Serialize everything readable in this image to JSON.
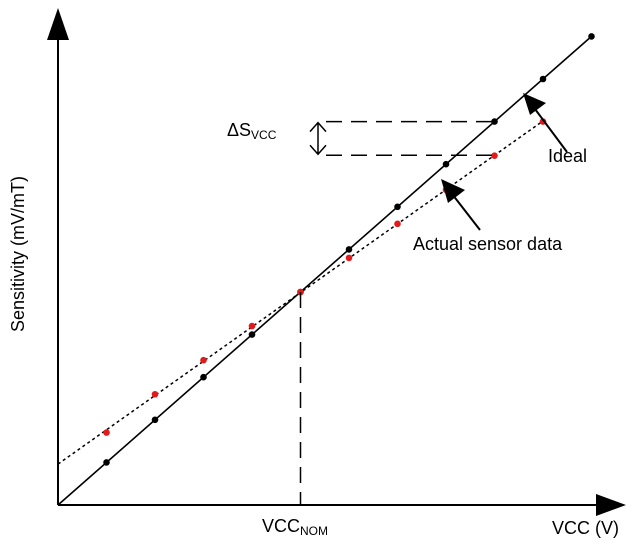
{
  "chart_data": {
    "type": "line",
    "xlabel": "VCC (V)",
    "ylabel": "Sensitivity (mV/mT)",
    "x_marker_label": {
      "base": "VCC",
      "sub": "NOM"
    },
    "delta_label": {
      "prefix": "ΔS",
      "sub": "VCC"
    },
    "annotations": {
      "ideal": "Ideal",
      "actual": "Actual sensor data"
    },
    "series": [
      {
        "name": "Ideal",
        "style": "solid",
        "color": "#000000",
        "points": [
          [
            0.5,
            0.5
          ],
          [
            1,
            1
          ],
          [
            1.5,
            1.5
          ],
          [
            2,
            2
          ],
          [
            2.5,
            2.5
          ],
          [
            3,
            3
          ],
          [
            3.5,
            3.5
          ],
          [
            4,
            4
          ],
          [
            4.5,
            4.5
          ],
          [
            5,
            5
          ]
        ]
      },
      {
        "name": "Actual sensor data",
        "style": "dotted",
        "color": "#e31a1c",
        "points": [
          [
            0.5,
            0.85
          ],
          [
            1,
            1.3
          ],
          [
            1.5,
            1.7
          ],
          [
            2,
            2.1
          ],
          [
            2.5,
            2.5
          ],
          [
            3,
            2.9
          ],
          [
            3.5,
            3.3
          ],
          [
            4,
            3.7
          ],
          [
            4.5,
            4.1
          ],
          [
            5,
            4.5
          ]
        ]
      }
    ],
    "ideal_line_extent": [
      0,
      5.5
    ],
    "actual_line_extent": [
      0,
      5.0
    ],
    "vcc_nom": 2.5,
    "delta_at_x": 4.5,
    "grid": false,
    "axis_ticks": false
  }
}
